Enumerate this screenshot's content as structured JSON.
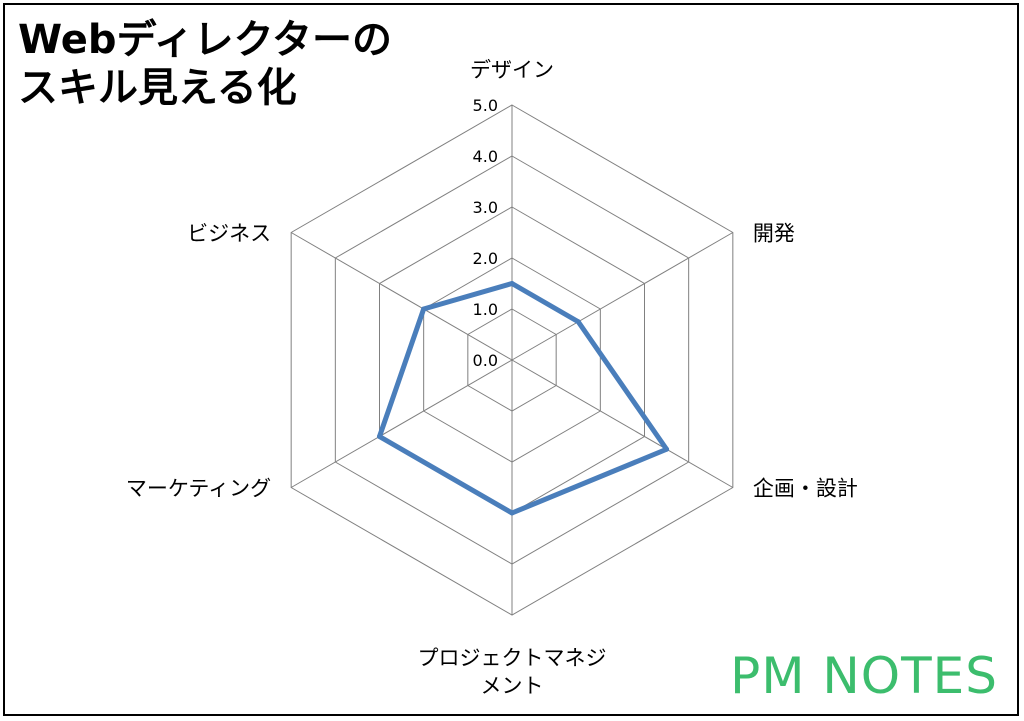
{
  "title_lines": [
    "Webディレクターの",
    "スキル見える化"
  ],
  "brand": "PM NOTES",
  "colors": {
    "series": "#4a7ebb",
    "grid": "#808080",
    "brand": "#3cbd6d"
  },
  "chart_data": {
    "type": "radar",
    "title": "Webディレクターのスキル見える化",
    "categories": [
      [
        "デザイン"
      ],
      [
        "開発"
      ],
      [
        "企画・設計"
      ],
      [
        "プロジェクトマネジ",
        "メント"
      ],
      [
        "マーケティング"
      ],
      [
        "ビジネス"
      ]
    ],
    "ticks": [
      "0.0",
      "1.0",
      "2.0",
      "3.0",
      "4.0",
      "5.0"
    ],
    "rlim": [
      0,
      5
    ],
    "series": [
      {
        "values": [
          1.5,
          1.5,
          3.5,
          3.0,
          3.0,
          2.0
        ]
      }
    ]
  }
}
